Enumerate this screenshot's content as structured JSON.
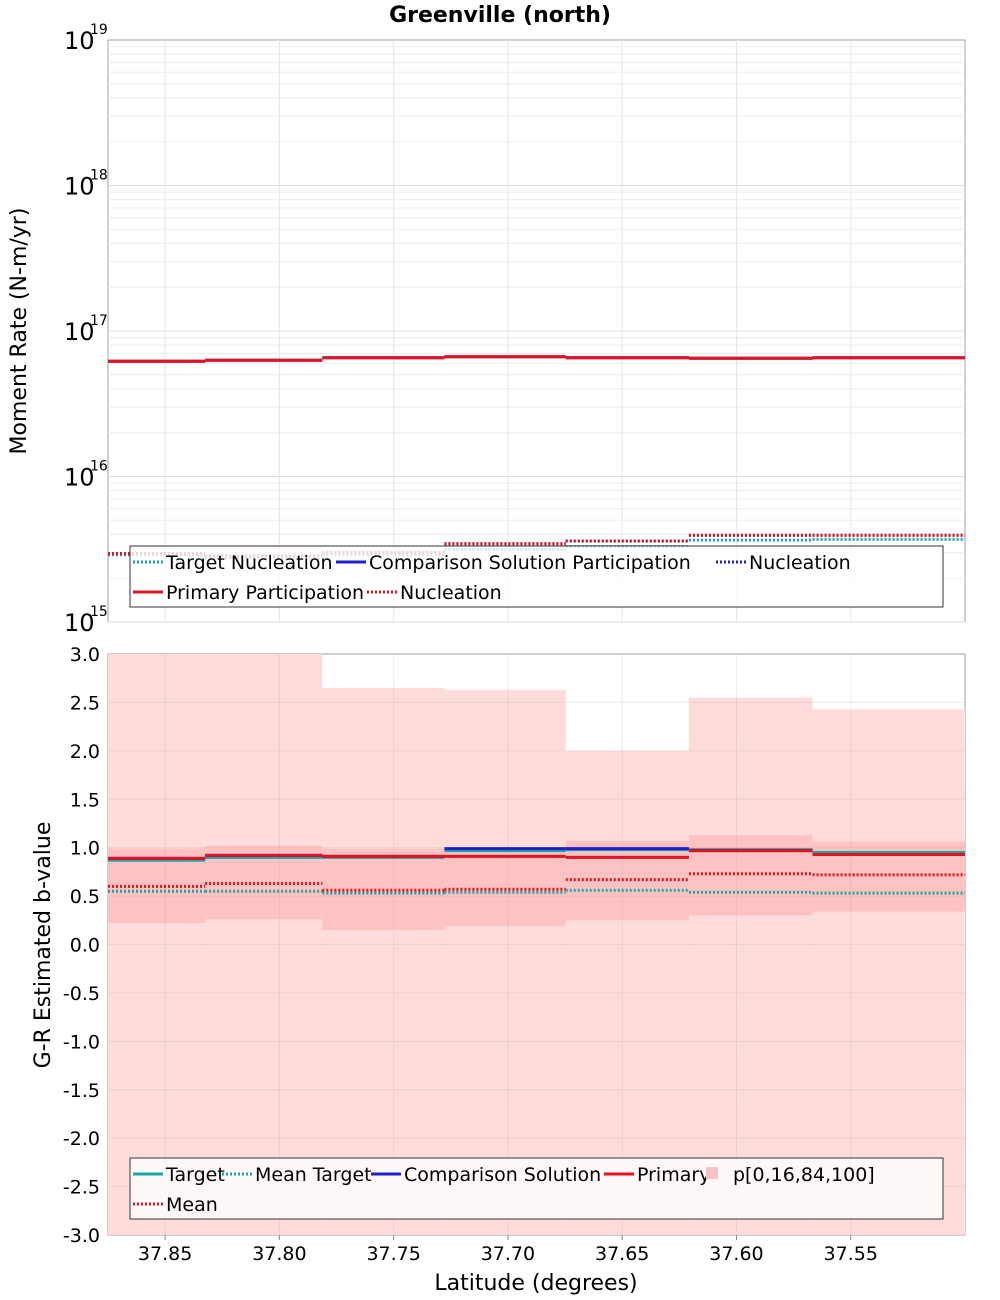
{
  "figure": {
    "title": "Greenville (north)",
    "xlabel": "Latitude (degrees)"
  },
  "chart_data": [
    {
      "type": "line",
      "ylabel": "Moment Rate (N-m/yr)",
      "yscale": "log",
      "ylim": [
        1000000000000000.0,
        1e+19
      ],
      "xlim": [
        37.875,
        37.5
      ],
      "x_reversed": true,
      "grid": true,
      "y_ticks": [
        {
          "base": "10",
          "exp": "15",
          "v": 1000000000000000.0
        },
        {
          "base": "10",
          "exp": "16",
          "v": 1e+16
        },
        {
          "base": "10",
          "exp": "17",
          "v": 1e+17
        },
        {
          "base": "10",
          "exp": "18",
          "v": 1e+18
        },
        {
          "base": "10",
          "exp": "19",
          "v": 1e+19
        }
      ],
      "bin_edges": [
        37.875,
        37.8325,
        37.7812,
        37.7278,
        37.6747,
        37.6208,
        37.5667,
        37.5
      ],
      "series": [
        {
          "name": "Target Nucleation",
          "style": "dotted",
          "color": "#1aa6a6",
          "values": [
            2900000000000000.0,
            2750000000000000.0,
            2900000000000000.0,
            3150000000000000.0,
            3300000000000000.0,
            3650000000000000.0,
            3700000000000000.0
          ]
        },
        {
          "name": "Comparison Solution Participation",
          "style": "solid",
          "color": "#1f1fcc",
          "values": [
            6.2e+16,
            6.3e+16,
            6.55e+16,
            6.65e+16,
            6.55e+16,
            6.5e+16,
            6.55e+16
          ]
        },
        {
          "name": "Nucleation",
          "style": "dotted",
          "color": "#1f1fcc",
          "values": [
            2950000000000000.0,
            2850000000000000.0,
            3000000000000000.0,
            3450000000000000.0,
            3600000000000000.0,
            3950000000000000.0,
            3950000000000000.0
          ]
        },
        {
          "name": "Primary Participation",
          "style": "solid",
          "color": "#e0141e",
          "values": [
            6.2e+16,
            6.3e+16,
            6.55e+16,
            6.65e+16,
            6.55e+16,
            6.5e+16,
            6.55e+16
          ]
        },
        {
          "name": "Nucleation",
          "style": "dotted",
          "color": "#e0141e",
          "values": [
            2950000000000000.0,
            2850000000000000.0,
            3000000000000000.0,
            3450000000000000.0,
            3600000000000000.0,
            3950000000000000.0,
            3950000000000000.0
          ]
        }
      ],
      "legend": {
        "placement": "bottom",
        "rows": [
          [
            "Target Nucleation",
            "Comparison Solution Participation",
            "Nucleation"
          ],
          [
            "Primary Participation",
            "Nucleation"
          ]
        ]
      }
    },
    {
      "type": "line",
      "ylabel": "G-R Estimated b-value",
      "ylim": [
        -3.0,
        3.0
      ],
      "y_ticks": [
        "-3.0",
        "-2.5",
        "-2.0",
        "-1.5",
        "-1.0",
        "-0.5",
        "0.0",
        "0.5",
        "1.0",
        "1.5",
        "2.0",
        "2.5",
        "3.0"
      ],
      "xlim": [
        37.875,
        37.5
      ],
      "x_reversed": true,
      "x_ticks": [
        "37.85",
        "37.80",
        "37.75",
        "37.70",
        "37.65",
        "37.60",
        "37.55"
      ],
      "grid": true,
      "bin_edges": [
        37.875,
        37.8325,
        37.7812,
        37.7278,
        37.6747,
        37.6208,
        37.5667,
        37.5
      ],
      "bands": {
        "name": "p[0,16,84,100]",
        "color": "#ffcccc",
        "p0": [
          -3.0,
          -3.0,
          -3.0,
          -3.0,
          -3.0,
          -3.0,
          -3.0
        ],
        "p100": [
          3.0,
          3.0,
          2.65,
          2.63,
          2.0,
          2.55,
          2.43
        ],
        "p16": [
          0.22,
          0.26,
          0.15,
          0.19,
          0.25,
          0.3,
          0.34
        ],
        "p84": [
          0.99,
          1.02,
          0.99,
          1.0,
          1.07,
          1.13,
          1.06
        ]
      },
      "series": [
        {
          "name": "Target",
          "style": "solid",
          "color": "#1aa6a6",
          "values": [
            0.87,
            0.9,
            0.9,
            0.97,
            0.98,
            0.98,
            0.95
          ]
        },
        {
          "name": "Mean Target",
          "style": "dotted",
          "color": "#1aa6a6",
          "values": [
            0.55,
            0.55,
            0.53,
            0.54,
            0.56,
            0.54,
            0.53
          ]
        },
        {
          "name": "Comparison Solution",
          "style": "solid",
          "color": "#1f1fcc",
          "values": [
            0.89,
            0.92,
            0.91,
            0.99,
            0.99,
            0.97,
            0.93
          ]
        },
        {
          "name": "Primary",
          "style": "solid",
          "color": "#e0141e",
          "values": [
            0.89,
            0.92,
            0.91,
            0.91,
            0.9,
            0.97,
            0.93
          ]
        },
        {
          "name": "Mean",
          "style": "dotted",
          "color": "#e0141e",
          "values": [
            0.6,
            0.63,
            0.56,
            0.57,
            0.67,
            0.73,
            0.72
          ]
        }
      ],
      "legend": {
        "placement": "bottom",
        "rows": [
          [
            "Target",
            "Mean Target",
            "Comparison Solution",
            "Primary",
            "p[0,16,84,100]"
          ],
          [
            "Mean"
          ]
        ]
      }
    }
  ]
}
